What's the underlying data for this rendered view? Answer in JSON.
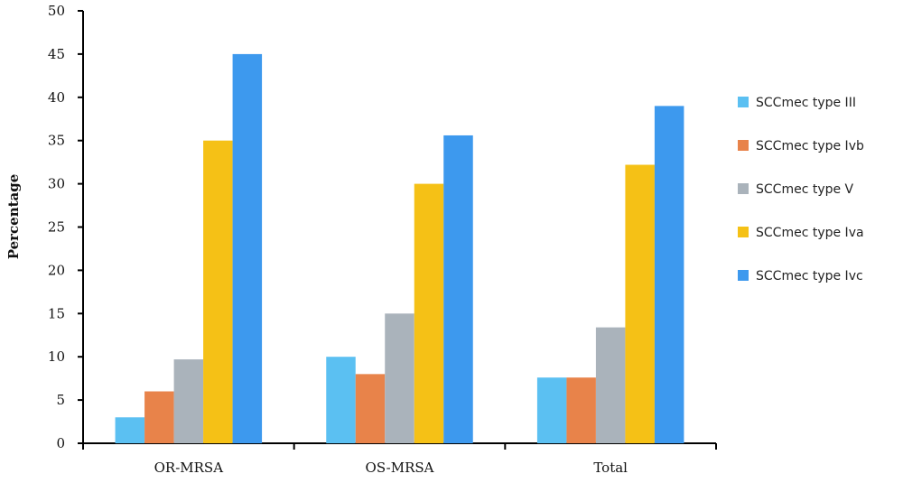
{
  "chart_data": {
    "type": "bar",
    "title": "",
    "xlabel": "",
    "ylabel": "Percentage",
    "ylim": [
      0,
      50
    ],
    "yticks": [
      0,
      5,
      10,
      15,
      20,
      25,
      30,
      35,
      40,
      45,
      50
    ],
    "categories": [
      "OR-MRSA",
      "OS-MRSA",
      "Total"
    ],
    "series": [
      {
        "name": "SCCmec type III",
        "color": "#5bc0f2",
        "values": [
          3,
          10,
          7.6
        ]
      },
      {
        "name": "SCCmec type Ivb",
        "color": "#e8834a",
        "values": [
          6,
          8,
          7.6
        ]
      },
      {
        "name": "SCCmec type V",
        "color": "#aab3bb",
        "values": [
          9.7,
          15,
          13.4
        ]
      },
      {
        "name": "SCCmec type Iva",
        "color": "#f5c116",
        "values": [
          35,
          30,
          32.2
        ]
      },
      {
        "name": "SCCmec type Ivc",
        "color": "#3d99ee",
        "values": [
          45,
          35.6,
          39
        ]
      }
    ],
    "legend_position": "right",
    "grid": false
  }
}
